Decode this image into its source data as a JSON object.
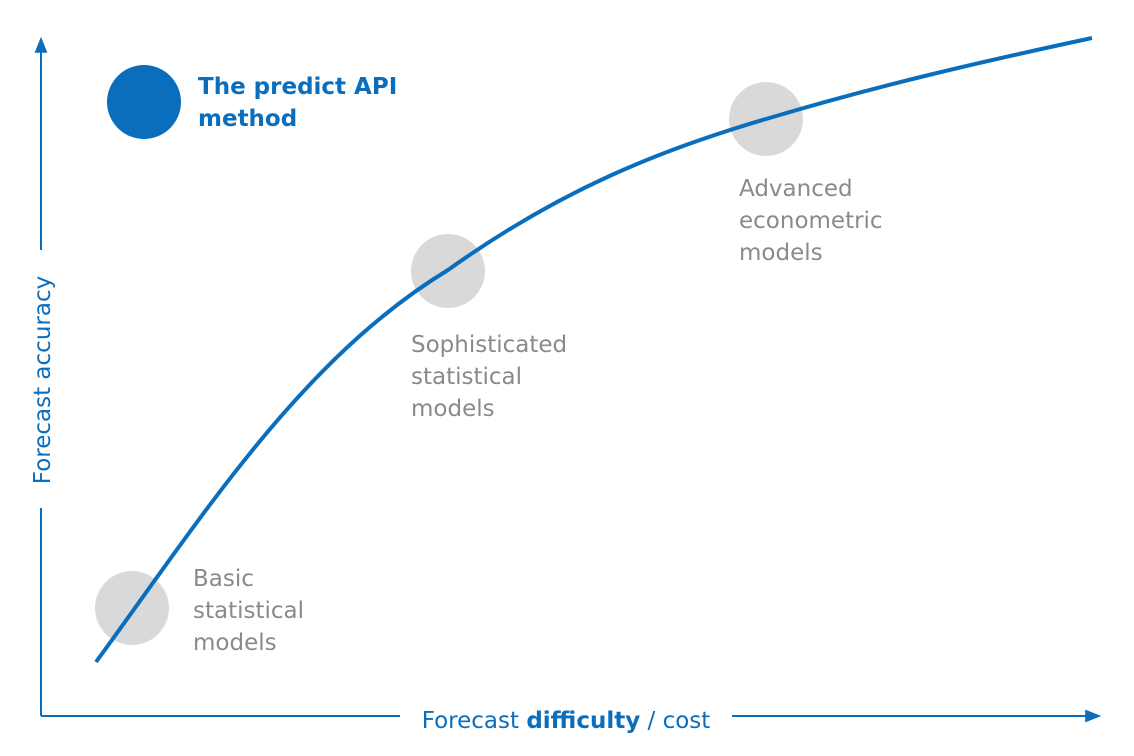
{
  "axes": {
    "y_label": "Forecast accuracy",
    "x_label": {
      "part1": "Forecast",
      "part2": "difficulty",
      "part3": "/ cost"
    }
  },
  "legend": {
    "label_lines": [
      "The predict API",
      "method"
    ]
  },
  "nodes": [
    {
      "label_lines": [
        "Basic",
        "statistical",
        "models"
      ]
    },
    {
      "label_lines": [
        "Sophisticated",
        "statistical",
        "models"
      ]
    },
    {
      "label_lines": [
        "Advanced",
        "econometric",
        "models"
      ]
    }
  ]
}
